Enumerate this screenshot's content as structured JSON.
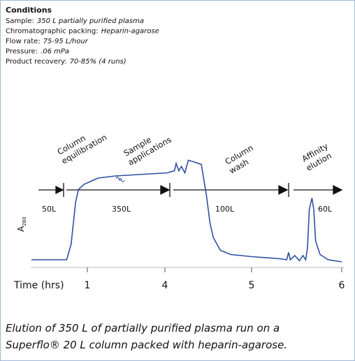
{
  "chart_data": {
    "type": "line",
    "conditions_title": "Conditions",
    "conditions": [
      {
        "label": "Sample:",
        "value": "350 L partially purified plasma"
      },
      {
        "label": "Chromatographic packing:",
        "value": "Heparin-agarose"
      },
      {
        "label": "Flow rate:",
        "value": "75-95 L/hour"
      },
      {
        "label": "Pressure:",
        "value": ".06 mPa"
      },
      {
        "label": "Product recovery:",
        "value": "70-85% (4 runs)"
      }
    ],
    "stages": [
      {
        "label": [
          "Column",
          "equilibration"
        ],
        "volume": "50L"
      },
      {
        "label": [
          "Sample",
          "applications"
        ],
        "volume": "350L"
      },
      {
        "label": [
          "Column",
          "wash"
        ],
        "volume": "100L"
      },
      {
        "label": [
          "Affinity",
          "elution"
        ],
        "volume": "60L"
      }
    ],
    "y_label": {
      "main": "A",
      "sub": "280"
    },
    "x_label": "Time (hrs)",
    "xlim": [
      0,
      6
    ],
    "xticks": [
      1,
      4,
      5,
      6
    ],
    "ylim": [
      0,
      1
    ],
    "color": "#2f4f9f",
    "x": [
      0,
      0.63,
      0.71,
      0.79,
      0.84,
      0.94,
      1.14,
      1.41,
      2.08,
      4.03,
      4.11,
      4.13,
      4.16,
      4.19,
      4.23,
      4.27,
      4.35,
      4.42,
      4.48,
      4.52,
      4.56,
      4.64,
      4.76,
      5,
      5.31,
      5.39,
      5.41,
      5.43,
      5.48,
      5.53,
      5.57,
      5.6,
      5.62,
      5.64,
      5.67,
      5.69,
      5.71,
      5.76,
      5.85,
      6
    ],
    "values": [
      0.02,
      0.02,
      0.17,
      0.57,
      0.69,
      0.74,
      0.77,
      0.8,
      0.82,
      0.85,
      0.87,
      0.94,
      0.87,
      0.91,
      0.85,
      0.97,
      0.95,
      0.93,
      0.63,
      0.37,
      0.23,
      0.11,
      0.07,
      0.05,
      0.03,
      0.02,
      0.09,
      0.02,
      0.06,
      0.01,
      0.06,
      0.02,
      0.13,
      0.5,
      0.61,
      0.5,
      0.2,
      0.07,
      0.02,
      0
    ],
    "caption": [
      "Elution of 350 L of partially purified plasma run on a",
      "Superflo® 20 L column packed with heparin-agarose."
    ]
  }
}
